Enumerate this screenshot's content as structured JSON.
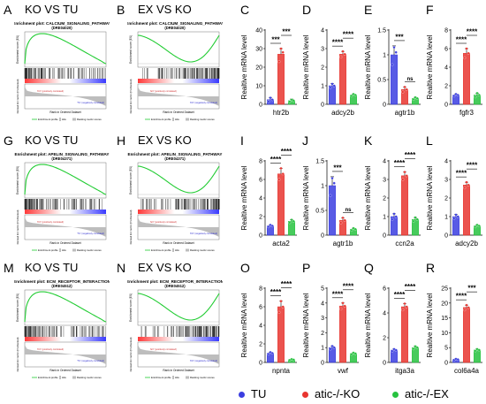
{
  "colors": {
    "TU": "#3b3ee0",
    "KO": "#e8352f",
    "EX": "#27c23f",
    "enrich": "#22cc33",
    "axis": "#000000"
  },
  "legend": {
    "items": [
      {
        "label": "TU",
        "color": "#3b3ee0"
      },
      {
        "label": "atic-/-KO",
        "color": "#e8352f"
      },
      {
        "label": "atic-/-EX",
        "color": "#27c23f"
      }
    ]
  },
  "gsea": [
    {
      "letter": "A",
      "heading": "KO VS TU",
      "plot_title": "Enrichment plot: CALCIUM_SIGNALING_PATHWAY",
      "plot_id": "(DRE04020)",
      "ylabel_top": "Enrichment score (ES)",
      "ylabel_bottom": "Ranked list metric (PreRanked)",
      "xlabel": "Rank in Ordered Dataset",
      "footer_left": "Enrichment profile",
      "footer_mid": "Hits",
      "footer_right": "Ranking metric scores",
      "shape": "up",
      "pos_label": "'KO' (positively correlated)",
      "neg_label": "'TU' (negatively correlated)"
    },
    {
      "letter": "B",
      "heading": "EX VS KO",
      "plot_title": "Enrichment plot: CALCIUM_SIGNALING_PATHWAY",
      "plot_id": "(DRE04020)",
      "ylabel_top": "Enrichment score (ES)",
      "ylabel_bottom": "Ranked list metric (PreRanked)",
      "xlabel": "Rank in Ordered Dataset",
      "footer_left": "Enrichment profile",
      "footer_mid": "Hits",
      "footer_right": "Ranking metric scores",
      "shape": "down",
      "pos_label": "'EX' (positively correlated)",
      "neg_label": "'KO' (negatively correlated)"
    },
    {
      "letter": "G",
      "heading": "KO VS TU",
      "plot_title": "Enrichment plot: APELIN_SIGNALING_PATHWAY",
      "plot_id": "(DRE04371)",
      "ylabel_top": "Enrichment score (ES)",
      "ylabel_bottom": "Ranked list metric (PreRanked)",
      "xlabel": "Rank in Ordered Dataset",
      "footer_left": "Enrichment profile",
      "footer_mid": "Hits",
      "footer_right": "Ranking metric scores",
      "shape": "up",
      "pos_label": "'KO' (positively correlated)",
      "neg_label": "'TU' (negatively correlated)"
    },
    {
      "letter": "H",
      "heading": "EX VS KO",
      "plot_title": "Enrichment plot: APELIN_SIGNALING_PATHWAY",
      "plot_id": "(DRE04371)",
      "ylabel_top": "Enrichment score (ES)",
      "ylabel_bottom": "Ranked list metric (PreRanked)",
      "xlabel": "Rank in Ordered Dataset",
      "footer_left": "Enrichment profile",
      "footer_mid": "Hits",
      "footer_right": "Ranking metric scores",
      "shape": "down",
      "pos_label": "'EX' (positively correlated)",
      "neg_label": "'KO' (negatively correlated)"
    },
    {
      "letter": "M",
      "heading": "KO VS TU",
      "plot_title": "Enrichment plot: ECM_RECEPTOR_INTERACTION",
      "plot_id": "(DRE04512)",
      "ylabel_top": "Enrichment score (ES)",
      "ylabel_bottom": "Ranked list metric (PreRanked)",
      "xlabel": "Rank in Ordered Dataset",
      "footer_left": "Enrichment profile",
      "footer_mid": "Hits",
      "footer_right": "Ranking metric scores",
      "shape": "up",
      "pos_label": "'KO' (positively correlated)",
      "neg_label": "'TU' (negatively correlated)"
    },
    {
      "letter": "N",
      "heading": "EX VS KO",
      "plot_title": "Enrichment plot: ECM_RECEPTOR_INTERACTION",
      "plot_id": "(DRE04512)",
      "ylabel_top": "Enrichment score (ES)",
      "ylabel_bottom": "Ranked list metric (PreRanked)",
      "xlabel": "Rank in Ordered Dataset",
      "footer_left": "Enrichment profile",
      "footer_mid": "Hits",
      "footer_right": "Ranking metric scores",
      "shape": "down",
      "pos_label": "'EX' (positively correlated)",
      "neg_label": "'KO' (negatively correlated)"
    }
  ],
  "chart_data": [
    {
      "letter": "C",
      "type": "bar",
      "gene": "htr2b",
      "ylabel": "Realtive mRNA level",
      "ylim": [
        0,
        40
      ],
      "ticks": [
        0,
        10,
        20,
        30,
        40
      ],
      "values": [
        2.5,
        27,
        2
      ],
      "errors": [
        1.2,
        3,
        0.8
      ],
      "points": [
        [
          1.5,
          3.5,
          2.5
        ],
        [
          23,
          30,
          28
        ],
        [
          1.5,
          2.5,
          2
        ]
      ],
      "sig": [
        {
          "a": 0,
          "b": 1,
          "label": "***",
          "level": 0
        },
        {
          "a": 1,
          "b": 2,
          "label": "***",
          "level": 1
        }
      ]
    },
    {
      "letter": "D",
      "type": "bar",
      "gene": "adcy2b",
      "ylabel": "Realtive mRNA level",
      "ylim": [
        0,
        4
      ],
      "ticks": [
        0,
        1,
        2,
        3,
        4
      ],
      "values": [
        1,
        2.7,
        0.5
      ],
      "errors": [
        0.12,
        0.15,
        0.05
      ],
      "points": [
        [
          0.9,
          1.1,
          1.0
        ],
        [
          2.55,
          2.85,
          2.7
        ],
        [
          0.45,
          0.55,
          0.5
        ]
      ],
      "sig": [
        {
          "a": 0,
          "b": 1,
          "label": "****",
          "level": 0
        },
        {
          "a": 1,
          "b": 2,
          "label": "****",
          "level": 1
        }
      ]
    },
    {
      "letter": "E",
      "type": "bar",
      "gene": "agtr1b",
      "ylabel": "Realtive mRNA level",
      "ylim": [
        0,
        1.5
      ],
      "ticks": [
        0.0,
        0.5,
        1.0,
        1.5
      ],
      "values": [
        1,
        0.3,
        0.12
      ],
      "errors": [
        0.18,
        0.05,
        0.02
      ],
      "points": [
        [
          0.8,
          1.15,
          1.05
        ],
        [
          0.25,
          0.35,
          0.3
        ],
        [
          0.1,
          0.14,
          0.12
        ]
      ],
      "sig": [
        {
          "a": 0,
          "b": 1,
          "label": "***",
          "level": 0
        },
        {
          "a": 1,
          "b": 2,
          "label": "ns",
          "level": 0
        }
      ]
    },
    {
      "letter": "F",
      "type": "bar",
      "gene": "fgfr3",
      "ylabel": "Realtive mRNA level",
      "ylim": [
        0,
        8
      ],
      "ticks": [
        0,
        2,
        4,
        6,
        8
      ],
      "values": [
        1,
        5.5,
        1
      ],
      "errors": [
        0.1,
        0.5,
        0.2
      ],
      "points": [
        [
          0.9,
          1.1,
          1.0
        ],
        [
          5.0,
          6.0,
          5.5
        ],
        [
          0.8,
          1.2,
          1.0
        ]
      ],
      "sig": [
        {
          "a": 0,
          "b": 1,
          "label": "****",
          "level": 0
        },
        {
          "a": 1,
          "b": 2,
          "label": "****",
          "level": 1
        }
      ]
    },
    {
      "letter": "I",
      "type": "bar",
      "gene": "acta2",
      "ylabel": "Realtive mRNA level",
      "ylim": [
        0,
        8
      ],
      "ticks": [
        0,
        2,
        4,
        6,
        8
      ],
      "values": [
        1,
        6.6,
        1.5
      ],
      "errors": [
        0.1,
        0.6,
        0.15
      ],
      "points": [
        [
          0.9,
          1.1,
          1.0
        ],
        [
          6.0,
          7.2,
          6.6
        ],
        [
          1.35,
          1.65,
          1.5
        ]
      ],
      "sig": [
        {
          "a": 0,
          "b": 1,
          "label": "****",
          "level": 0
        },
        {
          "a": 1,
          "b": 2,
          "label": "****",
          "level": 1
        }
      ]
    },
    {
      "letter": "J",
      "type": "bar",
      "gene": "agtr1b",
      "ylabel": "Realtive mRNA level",
      "ylim": [
        0,
        1.5
      ],
      "ticks": [
        0.0,
        0.5,
        1.0,
        1.5
      ],
      "values": [
        1,
        0.3,
        0.12
      ],
      "errors": [
        0.18,
        0.05,
        0.02
      ],
      "points": [
        [
          0.8,
          1.15,
          1.05
        ],
        [
          0.25,
          0.35,
          0.3
        ],
        [
          0.1,
          0.14,
          0.12
        ]
      ],
      "sig": [
        {
          "a": 0,
          "b": 1,
          "label": "***",
          "level": 0
        },
        {
          "a": 1,
          "b": 2,
          "label": "ns",
          "level": 0
        }
      ]
    },
    {
      "letter": "K",
      "type": "bar",
      "gene": "ccn2a",
      "ylabel": "Realtive mRNA level",
      "ylim": [
        0,
        4
      ],
      "ticks": [
        0,
        1,
        2,
        3,
        4
      ],
      "values": [
        1,
        3.2,
        0.85
      ],
      "errors": [
        0.15,
        0.2,
        0.1
      ],
      "points": [
        [
          0.85,
          1.15,
          1.0
        ],
        [
          3.0,
          3.4,
          3.2
        ],
        [
          0.75,
          0.95,
          0.85
        ]
      ],
      "sig": [
        {
          "a": 0,
          "b": 1,
          "label": "****",
          "level": 0
        },
        {
          "a": 1,
          "b": 2,
          "label": "****",
          "level": 1
        }
      ]
    },
    {
      "letter": "L",
      "type": "bar",
      "gene": "adcy2b",
      "ylabel": "Realtive mRNA level",
      "ylim": [
        0,
        4
      ],
      "ticks": [
        0,
        1,
        2,
        3,
        4
      ],
      "values": [
        1,
        2.7,
        0.5
      ],
      "errors": [
        0.12,
        0.15,
        0.05
      ],
      "points": [
        [
          0.9,
          1.1,
          1.0
        ],
        [
          2.55,
          2.85,
          2.7
        ],
        [
          0.45,
          0.55,
          0.5
        ]
      ],
      "sig": [
        {
          "a": 0,
          "b": 1,
          "label": "****",
          "level": 0
        },
        {
          "a": 1,
          "b": 2,
          "label": "****",
          "level": 1
        }
      ]
    },
    {
      "letter": "O",
      "type": "bar",
      "gene": "npnta",
      "ylabel": "Realtive mRNA level",
      "ylim": [
        0,
        8
      ],
      "ticks": [
        0,
        2,
        4,
        6,
        8
      ],
      "values": [
        1,
        6,
        0.3
      ],
      "errors": [
        0.1,
        0.6,
        0.05
      ],
      "points": [
        [
          0.9,
          1.1,
          1.0
        ],
        [
          5.4,
          6.6,
          6.0
        ],
        [
          0.25,
          0.35,
          0.3
        ]
      ],
      "sig": [
        {
          "a": 0,
          "b": 1,
          "label": "****",
          "level": 0
        },
        {
          "a": 1,
          "b": 2,
          "label": "****",
          "level": 1
        }
      ]
    },
    {
      "letter": "P",
      "type": "bar",
      "gene": "vwf",
      "ylabel": "Realtive mRNA level",
      "ylim": [
        0,
        5
      ],
      "ticks": [
        0,
        1,
        2,
        3,
        4,
        5
      ],
      "values": [
        1,
        3.8,
        0.6
      ],
      "errors": [
        0.1,
        0.2,
        0.05
      ],
      "points": [
        [
          0.9,
          1.1,
          1.0
        ],
        [
          3.6,
          4.0,
          3.8
        ],
        [
          0.55,
          0.65,
          0.6
        ]
      ],
      "sig": [
        {
          "a": 0,
          "b": 1,
          "label": "****",
          "level": 0
        },
        {
          "a": 1,
          "b": 2,
          "label": "****",
          "level": 1
        }
      ]
    },
    {
      "letter": "Q",
      "type": "bar",
      "gene": "itga3a",
      "ylabel": "Realtive mRNA level",
      "ylim": [
        0,
        6
      ],
      "ticks": [
        0,
        2,
        4,
        6
      ],
      "values": [
        1,
        4.5,
        1.2
      ],
      "errors": [
        0.08,
        0.25,
        0.1
      ],
      "points": [
        [
          0.92,
          1.08,
          1.0
        ],
        [
          4.25,
          4.75,
          4.5
        ],
        [
          1.1,
          1.3,
          1.2
        ]
      ],
      "sig": [
        {
          "a": 0,
          "b": 1,
          "label": "****",
          "level": 0
        },
        {
          "a": 1,
          "b": 2,
          "label": "****",
          "level": 1
        }
      ]
    },
    {
      "letter": "R",
      "type": "bar",
      "gene": "col6a4a",
      "ylabel": "Realtive mRNA level",
      "ylim": [
        0,
        25
      ],
      "ticks": [
        0,
        5,
        10,
        15,
        20,
        25
      ],
      "values": [
        1,
        18.5,
        4.2
      ],
      "errors": [
        0.2,
        0.8,
        0.3
      ],
      "points": [
        [
          0.8,
          1.2,
          1.0
        ],
        [
          17.7,
          19.3,
          18.5
        ],
        [
          3.9,
          4.5,
          4.2
        ]
      ],
      "sig": [
        {
          "a": 0,
          "b": 1,
          "label": "****",
          "level": 0
        },
        {
          "a": 1,
          "b": 2,
          "label": "***",
          "level": 1
        }
      ]
    }
  ]
}
